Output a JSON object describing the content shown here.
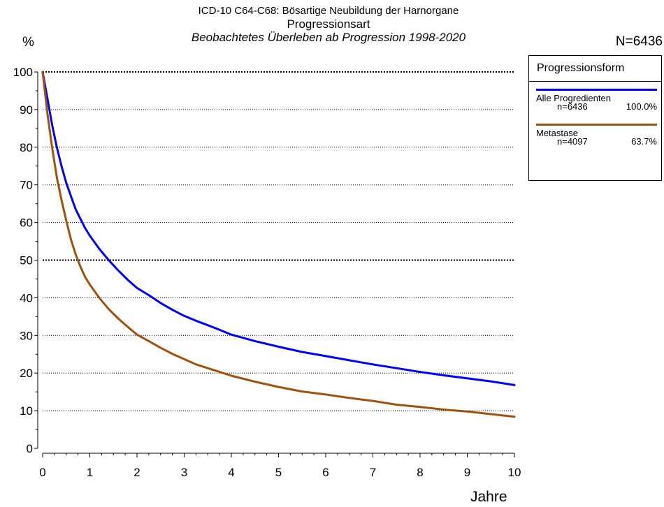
{
  "header": {
    "line1": "ICD-10 C64-C68: Bösartige Neubildung der Harnorgane",
    "line2": "Progressionsart",
    "line3": "Beobachtetes Überleben ab Progression 1998-2020",
    "n_total": "N=6436",
    "y_unit": "%",
    "x_unit": "Jahre"
  },
  "legend": {
    "title": "Progressionsform",
    "items": [
      {
        "name": "Alle Progredienten",
        "n": "n=6436",
        "pct": "100.0%",
        "color": "#0000ff"
      },
      {
        "name": "Metastase",
        "n": "n=4097",
        "pct": "63.7%",
        "color": "#a0520a"
      }
    ]
  },
  "chart_data": {
    "type": "line",
    "title": "Beobachtetes Überleben ab Progression 1998-2020",
    "xlabel": "Jahre",
    "ylabel": "%",
    "xlim": [
      0,
      10
    ],
    "ylim": [
      0,
      100
    ],
    "xticks": [
      0,
      1,
      2,
      3,
      4,
      5,
      6,
      7,
      8,
      9,
      10
    ],
    "yticks": [
      0,
      10,
      20,
      30,
      40,
      50,
      60,
      70,
      80,
      90,
      100
    ],
    "grid": "horizontal dotted",
    "legend_position": "right",
    "series": [
      {
        "name": "Alle Progredienten",
        "color": "#0000ff",
        "x": [
          0,
          0.1,
          0.2,
          0.3,
          0.4,
          0.5,
          0.6,
          0.7,
          0.8,
          0.9,
          1.0,
          1.2,
          1.4,
          1.6,
          1.8,
          2.0,
          2.25,
          2.5,
          2.75,
          3.0,
          3.25,
          3.5,
          3.75,
          4.0,
          4.5,
          5.0,
          5.5,
          6.0,
          6.5,
          7.0,
          7.5,
          8.0,
          8.5,
          9.0,
          9.5,
          10.0
        ],
        "y": [
          100,
          93,
          86,
          80,
          75,
          70.5,
          67,
          63.5,
          61,
          58.5,
          56.5,
          53,
          50,
          47.3,
          44.8,
          42.6,
          40.7,
          38.6,
          36.8,
          35.2,
          33.9,
          32.7,
          31.5,
          30.2,
          28.5,
          27,
          25.6,
          24.5,
          23.4,
          22.3,
          21.3,
          20.3,
          19.4,
          18.6,
          17.8,
          16.8
        ]
      },
      {
        "name": "Metastase",
        "color": "#a0520a",
        "x": [
          0,
          0.1,
          0.2,
          0.3,
          0.4,
          0.5,
          0.6,
          0.7,
          0.8,
          0.9,
          1.0,
          1.2,
          1.4,
          1.6,
          1.8,
          2.0,
          2.25,
          2.5,
          2.75,
          3.0,
          3.25,
          3.5,
          3.75,
          4.0,
          4.5,
          5.0,
          5.5,
          6.0,
          6.5,
          7.0,
          7.5,
          8.0,
          8.5,
          9.0,
          9.5,
          10.0
        ],
        "y": [
          100,
          89,
          80,
          72,
          66,
          60.5,
          55.5,
          51.5,
          48.3,
          45.5,
          43.5,
          40,
          37,
          34.5,
          32.3,
          30.2,
          28.5,
          26.7,
          25.1,
          23.7,
          22.3,
          21.3,
          20.3,
          19.3,
          17.7,
          16.3,
          15.1,
          14.3,
          13.4,
          12.6,
          11.6,
          11.0,
          10.3,
          9.8,
          9.1,
          8.4
        ]
      }
    ]
  }
}
